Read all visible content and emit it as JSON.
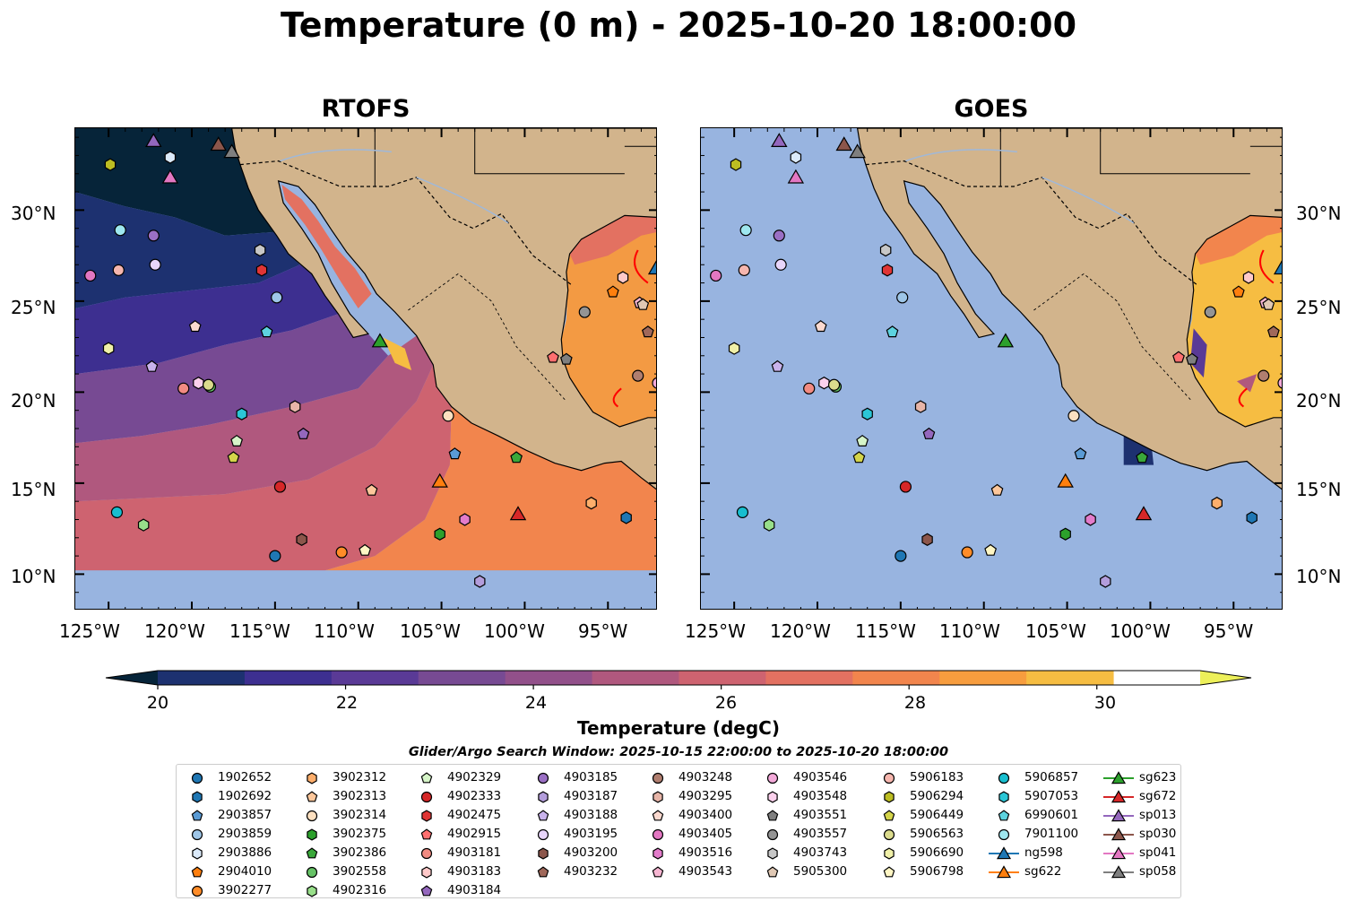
{
  "figure": {
    "title": "Temperature (0 m) - 2025-10-20 18:00:00",
    "panels": [
      {
        "name": "RTOFS"
      },
      {
        "name": "GOES"
      }
    ],
    "lat_labels": [
      "30°N",
      "25°N",
      "20°N",
      "15°N",
      "10°N"
    ],
    "lon_labels": [
      "125°W",
      "120°W",
      "115°W",
      "110°W",
      "105°W",
      "100°W",
      "95°W"
    ],
    "colorbar": {
      "label": "Temperature (degC)",
      "ticks": [
        "20",
        "22",
        "24",
        "26",
        "28",
        "30"
      ],
      "min": 20,
      "max": 31.1,
      "colors": [
        "#062439",
        "#1d3170",
        "#3d2f90",
        "#5a3a96",
        "#774a93",
        "#92508a",
        "#b0587e",
        "#ce6370",
        "#e37161",
        "#f2854d",
        "#f79d3e",
        "#f6bd42",
        "#edf05a"
      ]
    },
    "search_window": "Glider/Argo Search Window: 2025-10-15 22:00:00 to 2025-10-20 18:00:00"
  },
  "chart_data": {
    "type": "map",
    "extent": {
      "lon": [
        -127,
        -92
      ],
      "lat": [
        8,
        34.5
      ]
    },
    "legend_columns": [
      [
        {
          "id": "1902652",
          "marker": "circle",
          "color": "#1f77b4",
          "lon": -115.0,
          "lat": 11.0
        },
        {
          "id": "1902692",
          "marker": "hexagon",
          "color": "#1f77b4",
          "lon": -93.9,
          "lat": 13.1
        },
        {
          "id": "2903857",
          "marker": "pentagon",
          "color": "#5a9bd5",
          "lon": -104.2,
          "lat": 16.6
        },
        {
          "id": "2903859",
          "marker": "circle",
          "color": "#9ec6e8",
          "lon": -114.9,
          "lat": 25.2
        },
        {
          "id": "2903886",
          "marker": "hexagon",
          "color": "#dbeafa",
          "lon": -121.3,
          "lat": 32.9
        },
        {
          "id": "2904010",
          "marker": "pentagon",
          "color": "#ff7f0e",
          "lon": -94.7,
          "lat": 25.5
        },
        {
          "id": "3902277",
          "marker": "circle",
          "color": "#ff8c28",
          "lon": -111.0,
          "lat": 11.2
        }
      ],
      [
        {
          "id": "3902312",
          "marker": "hexagon",
          "color": "#fdae6b",
          "lon": -96.0,
          "lat": 13.9
        },
        {
          "id": "3902313",
          "marker": "pentagon",
          "color": "#fdc79b",
          "lon": -109.2,
          "lat": 14.6
        },
        {
          "id": "3902314",
          "marker": "circle",
          "color": "#fde0c0",
          "lon": -104.6,
          "lat": 18.7
        },
        {
          "id": "3902375",
          "marker": "hexagon",
          "color": "#2ca02c",
          "lon": -105.1,
          "lat": 12.2
        },
        {
          "id": "3902386",
          "marker": "pentagon",
          "color": "#3aa83a",
          "lon": -100.5,
          "lat": 16.4
        },
        {
          "id": "3902558",
          "marker": "circle",
          "color": "#66c266",
          "lon": -118.9,
          "lat": 20.3
        },
        {
          "id": "4902316",
          "marker": "hexagon",
          "color": "#98df8a",
          "lon": -122.9,
          "lat": 12.7
        }
      ],
      [
        {
          "id": "4902329",
          "marker": "pentagon",
          "color": "#d6f5c8",
          "lon": -117.3,
          "lat": 17.3
        },
        {
          "id": "4902333",
          "marker": "circle",
          "color": "#d62728",
          "lon": -114.7,
          "lat": 14.8
        },
        {
          "id": "4902475",
          "marker": "hexagon",
          "color": "#e03535",
          "lon": -115.8,
          "lat": 26.7
        },
        {
          "id": "4902915",
          "marker": "pentagon",
          "color": "#ff6f6f",
          "lon": -98.3,
          "lat": 21.9
        },
        {
          "id": "4903181",
          "marker": "circle",
          "color": "#f28b82",
          "lon": -120.5,
          "lat": 20.2
        },
        {
          "id": "4903183",
          "marker": "hexagon",
          "color": "#ffc9c9",
          "lon": -94.1,
          "lat": 26.3
        },
        {
          "id": "4903184",
          "marker": "pentagon",
          "color": "#9467bd",
          "lon": -113.3,
          "lat": 17.7
        }
      ],
      [
        {
          "id": "4903185",
          "marker": "circle",
          "color": "#9a6fc4",
          "lon": -122.3,
          "lat": 28.6
        },
        {
          "id": "4903187",
          "marker": "hexagon",
          "color": "#b39ddb",
          "lon": -102.7,
          "lat": 9.6
        },
        {
          "id": "4903188",
          "marker": "pentagon",
          "color": "#c9b3ec",
          "lon": -122.4,
          "lat": 21.4
        },
        {
          "id": "4903195",
          "marker": "circle",
          "color": "#e8d5fa",
          "lon": -122.2,
          "lat": 27.0
        },
        {
          "id": "4903200",
          "marker": "hexagon",
          "color": "#8c564b",
          "lon": -113.4,
          "lat": 11.9
        },
        {
          "id": "4903232",
          "marker": "pentagon",
          "color": "#a0685a",
          "lon": -92.6,
          "lat": 23.3
        }
      ],
      [
        {
          "id": "4903248",
          "marker": "circle",
          "color": "#b07e6f",
          "lon": -93.2,
          "lat": 20.9
        },
        {
          "id": "4903295",
          "marker": "hexagon",
          "color": "#e7b5a8",
          "lon": -113.8,
          "lat": 19.2
        },
        {
          "id": "4903400",
          "marker": "pentagon",
          "color": "#fbd9cf",
          "lon": -119.8,
          "lat": 23.6
        },
        {
          "id": "4903405",
          "marker": "circle",
          "color": "#e377c2",
          "lon": -126.1,
          "lat": 26.4
        },
        {
          "id": "4903516",
          "marker": "hexagon",
          "color": "#e37ccb",
          "lon": -103.6,
          "lat": 13.0
        },
        {
          "id": "4903543",
          "marker": "pentagon",
          "color": "#f7b6d2",
          "lon": -93.1,
          "lat": 24.9
        }
      ],
      [
        {
          "id": "4903546",
          "marker": "circle",
          "color": "#f3a9d9",
          "lon": -92.0,
          "lat": 20.5
        },
        {
          "id": "4903548",
          "marker": "hexagon",
          "color": "#fbd0ec",
          "lon": -119.6,
          "lat": 20.5
        },
        {
          "id": "4903551",
          "marker": "pentagon",
          "color": "#7f7f7f",
          "lon": -97.5,
          "lat": 21.8
        },
        {
          "id": "4903557",
          "marker": "circle",
          "color": "#949494",
          "lon": -96.4,
          "lat": 24.4
        },
        {
          "id": "4903743",
          "marker": "hexagon",
          "color": "#c7c7c7",
          "lon": -115.9,
          "lat": 27.8
        },
        {
          "id": "5905300",
          "marker": "pentagon",
          "color": "#e0c8b4",
          "lon": -92.9,
          "lat": 24.8
        }
      ],
      [
        {
          "id": "5906183",
          "marker": "circle",
          "color": "#f6b6ae",
          "lon": -124.4,
          "lat": 26.7
        },
        {
          "id": "5906294",
          "marker": "hexagon",
          "color": "#bcbd22",
          "lon": -124.9,
          "lat": 32.5
        },
        {
          "id": "5906449",
          "marker": "pentagon",
          "color": "#d4d44a",
          "lon": -117.5,
          "lat": 16.4
        },
        {
          "id": "5906563",
          "marker": "circle",
          "color": "#dbdb8d",
          "lon": -119.0,
          "lat": 20.4
        },
        {
          "id": "5906690",
          "marker": "hexagon",
          "color": "#f0f0a8",
          "lon": -125.0,
          "lat": 22.4
        },
        {
          "id": "5906798",
          "marker": "pentagon",
          "color": "#fff6c4",
          "lon": -109.6,
          "lat": 11.3
        }
      ],
      [
        {
          "id": "5906857",
          "marker": "circle",
          "color": "#17becf",
          "lon": -124.5,
          "lat": 13.4
        },
        {
          "id": "5907053",
          "marker": "hexagon",
          "color": "#2bc6d6",
          "lon": -117.0,
          "lat": 18.8
        },
        {
          "id": "6990601",
          "marker": "pentagon",
          "color": "#5dd3df",
          "lon": -115.5,
          "lat": 23.3
        },
        {
          "id": "7901100",
          "marker": "circle",
          "color": "#9ee7ef",
          "lon": -124.3,
          "lat": 28.9
        },
        {
          "id": "ng598",
          "marker": "triangle",
          "color": "#1f77b4",
          "line": true,
          "lon": -92.1,
          "lat": 26.8
        },
        {
          "id": "sg622",
          "marker": "triangle",
          "color": "#ff7f0e",
          "line": true,
          "lon": -105.1,
          "lat": 15.1
        }
      ],
      [
        {
          "id": "sg623",
          "marker": "triangle",
          "color": "#2ca02c",
          "line": true,
          "lon": -108.7,
          "lat": 22.8
        },
        {
          "id": "sg672",
          "marker": "triangle",
          "color": "#d62728",
          "line": true,
          "lon": -100.4,
          "lat": 13.3
        },
        {
          "id": "sp013",
          "marker": "triangle",
          "color": "#9467bd",
          "line": true,
          "lon": -122.3,
          "lat": 33.8
        },
        {
          "id": "sp030",
          "marker": "triangle",
          "color": "#8c564b",
          "line": true,
          "lon": -118.4,
          "lat": 33.6
        },
        {
          "id": "sp041",
          "marker": "triangle",
          "color": "#e377c2",
          "line": true,
          "lon": -121.3,
          "lat": 31.8
        },
        {
          "id": "sp058",
          "marker": "triangle",
          "color": "#7f7f7f",
          "line": true,
          "lon": -117.6,
          "lat": 33.2
        }
      ]
    ]
  }
}
